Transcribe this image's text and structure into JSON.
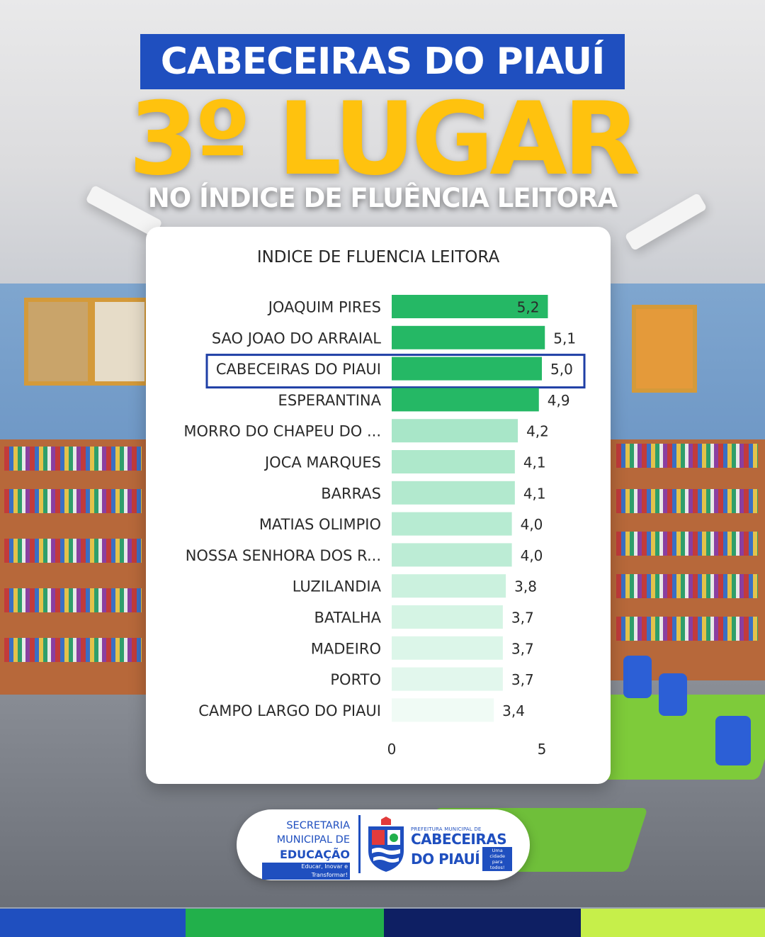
{
  "header": {
    "city": "CABECEIRAS DO PIAUÍ",
    "rank": "3º LUGAR",
    "subtitle": "NO ÍNDICE DE FLUÊNCIA LEITORA"
  },
  "chart_data": {
    "type": "bar",
    "orientation": "horizontal",
    "title": "INDICE DE FLUENCIA LEITORA",
    "categories": [
      "JOAQUIM PIRES",
      "SAO JOAO DO ARRAIAL",
      "CABECEIRAS DO PIAUI",
      "ESPERANTINA",
      "MORRO DO CHAPEU DO ...",
      "JOCA MARQUES",
      "BARRAS",
      "MATIAS OLIMPIO",
      "NOSSA SENHORA DOS R...",
      "LUZILANDIA",
      "BATALHA",
      "MADEIRO",
      "PORTO",
      "CAMPO LARGO DO PIAUI"
    ],
    "values": [
      5.2,
      5.1,
      5.0,
      4.9,
      4.2,
      4.1,
      4.1,
      4.0,
      4.0,
      3.8,
      3.7,
      3.7,
      3.7,
      3.4
    ],
    "value_labels": [
      "5,2",
      "5,1",
      "5,0",
      "4,9",
      "4,2",
      "4,1",
      "4,1",
      "4,0",
      "4,0",
      "3,8",
      "3,7",
      "3,7",
      "3,7",
      "3,4"
    ],
    "xticks": [
      "0",
      "5"
    ],
    "xlim": [
      0,
      5.2
    ],
    "highlighted_category": "CABECEIRAS DO PIAUI",
    "colors": {
      "top_bars": "#25b865",
      "mid_bars": [
        "#a8e6c8",
        "#aee8cb",
        "#b2e9ce",
        "#b7ebd2",
        "#bcecd5"
      ],
      "low_bars": [
        "#cbf1de",
        "#d5f4e4",
        "#dcf6e9",
        "#e2f7ed",
        "#f0fbf5"
      ],
      "highlight_box": "#1f3fa6"
    }
  },
  "footer": {
    "secretaria": {
      "line1": "SECRETARIA",
      "line2": "MUNICIPAL DE",
      "line3": "EDUCAÇÃO",
      "tagline": "Educar, Inovar e Transformar!"
    },
    "prefeitura": {
      "small": "PREFEITURA MUNICIPAL DE",
      "line1": "CABECEIRAS",
      "line2": "DO PIAUÍ",
      "slogan": "Uma cidade para todos!"
    }
  },
  "colors": {
    "brand_blue": "#1f4fbf",
    "brand_yellow": "#ffc20e",
    "stripes": [
      "#1f4fbf",
      "#22b04b",
      "#0e1f63",
      "#c6ef4a"
    ]
  }
}
